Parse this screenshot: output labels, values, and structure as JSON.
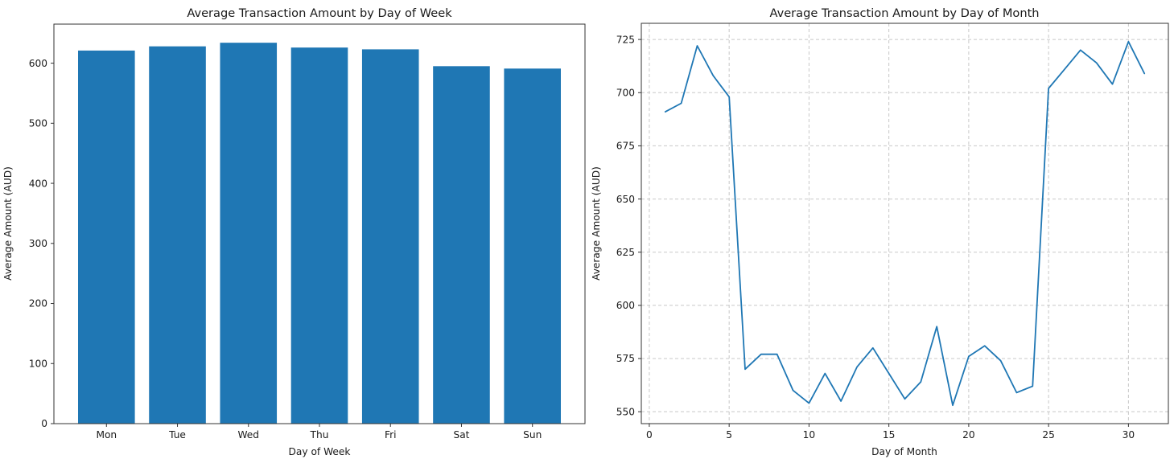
{
  "colors": {
    "series_blue": "#1f77b4",
    "text": "#1a1a1a",
    "spine": "#333333",
    "grid": "#c8c8c8",
    "background": "#ffffff"
  },
  "chart_data": [
    {
      "type": "bar",
      "title": "Average Transaction Amount by Day of Week",
      "xlabel": "Day of Week",
      "ylabel": "Average Amount (AUD)",
      "categories": [
        "Mon",
        "Tue",
        "Wed",
        "Thu",
        "Fri",
        "Sat",
        "Sun"
      ],
      "values": [
        621,
        628,
        634,
        626,
        623,
        595,
        591
      ],
      "yticks": [
        0,
        100,
        200,
        300,
        400,
        500,
        600
      ],
      "ylim": [
        0,
        665
      ],
      "bar_color": "#1f77b4",
      "bar_width_fraction": 0.8,
      "grid": false,
      "legend": "none"
    },
    {
      "type": "line",
      "title": "Average Transaction Amount by Day of Month",
      "xlabel": "Day of Month",
      "ylabel": "Average Amount (AUD)",
      "x": [
        1,
        2,
        3,
        4,
        5,
        6,
        7,
        8,
        9,
        10,
        11,
        12,
        13,
        14,
        15,
        16,
        17,
        18,
        19,
        20,
        21,
        22,
        23,
        24,
        25,
        26,
        27,
        28,
        29,
        30,
        31
      ],
      "values": [
        691,
        695,
        722,
        708,
        698,
        570,
        577,
        577,
        560,
        554,
        568,
        555,
        571,
        580,
        568,
        556,
        564,
        590,
        553,
        576,
        581,
        574,
        559,
        562,
        702,
        711,
        720,
        714,
        704,
        724,
        709
      ],
      "xticks": [
        0,
        5,
        10,
        15,
        20,
        25,
        30
      ],
      "yticks": [
        550,
        575,
        600,
        625,
        650,
        675,
        700,
        725
      ],
      "xlim": [
        -0.5,
        32.5
      ],
      "ylim": [
        544.4,
        732.6
      ],
      "line_color": "#1f77b4",
      "grid": true,
      "grid_style": "dashed",
      "legend": "none"
    }
  ]
}
